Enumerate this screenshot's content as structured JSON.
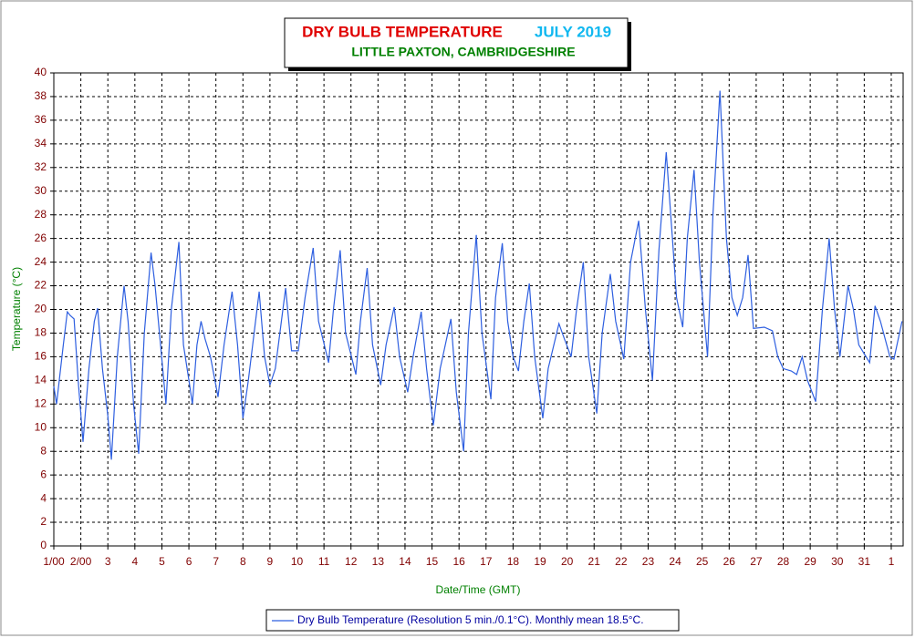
{
  "chart_data": {
    "type": "line",
    "title": "DRY BULB TEMPERATURE",
    "title_period": "JULY 2019",
    "subtitle": "LITTLE PAXTON, CAMBRIDGESHIRE",
    "x_label": "Date/Time (GMT)",
    "y_label": "Temperature (°C)",
    "xlim": [
      0,
      31.44
    ],
    "ylim": [
      0,
      40
    ],
    "grid": true,
    "xticks": [
      {
        "value": 0,
        "label": "1/00"
      },
      {
        "value": 1,
        "label": "2/00"
      },
      {
        "value": 2,
        "label": "3"
      },
      {
        "value": 3,
        "label": "4"
      },
      {
        "value": 4,
        "label": "5"
      },
      {
        "value": 5,
        "label": "6"
      },
      {
        "value": 6,
        "label": "7"
      },
      {
        "value": 7,
        "label": "8"
      },
      {
        "value": 8,
        "label": "9"
      },
      {
        "value": 9,
        "label": "10"
      },
      {
        "value": 10,
        "label": "11"
      },
      {
        "value": 11,
        "label": "12"
      },
      {
        "value": 12,
        "label": "13"
      },
      {
        "value": 13,
        "label": "14"
      },
      {
        "value": 14,
        "label": "15"
      },
      {
        "value": 15,
        "label": "16"
      },
      {
        "value": 16,
        "label": "17"
      },
      {
        "value": 17,
        "label": "18"
      },
      {
        "value": 18,
        "label": "19"
      },
      {
        "value": 19,
        "label": "20"
      },
      {
        "value": 20,
        "label": "21"
      },
      {
        "value": 21,
        "label": "22"
      },
      {
        "value": 22,
        "label": "23"
      },
      {
        "value": 23,
        "label": "24"
      },
      {
        "value": 24,
        "label": "25"
      },
      {
        "value": 25,
        "label": "26"
      },
      {
        "value": 26,
        "label": "27"
      },
      {
        "value": 27,
        "label": "28"
      },
      {
        "value": 28,
        "label": "29"
      },
      {
        "value": 29,
        "label": "30"
      },
      {
        "value": 30,
        "label": "31"
      },
      {
        "value": 31,
        "label": "1"
      }
    ],
    "yticks": [
      0,
      2,
      4,
      6,
      8,
      10,
      12,
      14,
      16,
      18,
      20,
      22,
      24,
      26,
      28,
      30,
      32,
      34,
      36,
      38,
      40
    ],
    "x": [
      0,
      0.1,
      0.35,
      0.5,
      0.6,
      0.75,
      0.9,
      1.08,
      1.3,
      1.5,
      1.62,
      1.8,
      2.0,
      2.13,
      2.35,
      2.6,
      2.75,
      2.95,
      3.14,
      3.35,
      3.6,
      3.75,
      3.95,
      4.15,
      4.35,
      4.63,
      4.8,
      5.0,
      5.13,
      5.3,
      5.45,
      5.6,
      5.8,
      6.08,
      6.3,
      6.6,
      6.8,
      7.0,
      7.2,
      7.6,
      7.8,
      8.0,
      8.2,
      8.58,
      8.8,
      9.05,
      9.3,
      9.6,
      9.8,
      10.17,
      10.35,
      10.6,
      10.8,
      11.18,
      11.35,
      11.6,
      11.8,
      12.1,
      12.3,
      12.6,
      12.8,
      13.1,
      13.3,
      13.6,
      13.8,
      14.05,
      14.3,
      14.7,
      14.9,
      15.17,
      15.35,
      15.64,
      15.85,
      16.18,
      16.35,
      16.6,
      16.8,
      17.0,
      17.2,
      17.4,
      17.6,
      17.8,
      18.1,
      18.3,
      18.7,
      18.9,
      19.15,
      19.35,
      19.6,
      19.8,
      20.1,
      20.3,
      20.6,
      20.8,
      21.1,
      21.35,
      21.65,
      21.9,
      22.16,
      22.4,
      22.67,
      22.9,
      23.05,
      23.28,
      23.45,
      23.7,
      23.9,
      24.2,
      24.4,
      24.66,
      24.9,
      25.1,
      25.3,
      25.5,
      25.7,
      25.9,
      26.3,
      26.6,
      26.8,
      27.0,
      27.3,
      27.5,
      27.7,
      27.9,
      28.2,
      28.45,
      28.7,
      28.9,
      29.1,
      29.4,
      29.6,
      29.8,
      30.2,
      30.4,
      30.6,
      30.95,
      31.1,
      31.4
    ],
    "series": [
      {
        "name": "Dry Bulb Temperature (Resolution 5 min./0.1°C). Monthly mean 18.5°C.",
        "color": "#2e5fe0",
        "values": [
          13.5,
          12,
          17,
          19.8,
          19.5,
          19.2,
          14,
          8.8,
          15,
          19,
          20.1,
          15,
          11,
          7.3,
          16,
          22,
          19,
          12,
          7.8,
          18,
          24.8,
          22,
          17,
          12,
          20,
          25.7,
          17,
          14,
          12,
          17,
          19,
          17.5,
          16,
          12.6,
          17,
          21.5,
          17,
          10.8,
          14,
          21.5,
          16,
          13.6,
          15,
          21.8,
          16.5,
          16.5,
          21,
          25.2,
          19,
          15.5,
          20,
          25,
          18,
          14.5,
          19,
          23.5,
          17,
          13.6,
          17,
          20.2,
          16,
          13,
          16,
          19.8,
          15,
          10.2,
          15,
          19.2,
          13,
          8,
          18,
          26.3,
          18,
          12.4,
          21,
          25.6,
          19,
          16,
          14.8,
          19,
          22.2,
          16,
          10.8,
          15,
          18.8,
          17.5,
          16,
          20,
          24,
          16,
          11.2,
          18,
          23,
          19,
          15.8,
          24,
          27.5,
          20,
          14,
          25,
          33.3,
          26,
          21,
          18.5,
          26,
          31.8,
          24,
          16,
          28,
          38.5,
          26,
          21,
          19.5,
          21,
          24.6,
          18.4,
          18.5,
          18.2,
          16,
          15,
          14.8,
          14.5,
          16,
          14,
          12.2,
          20,
          26,
          20,
          16,
          22,
          20,
          17,
          15.5,
          20.3,
          19,
          16,
          15.8,
          19
        ]
      }
    ]
  }
}
